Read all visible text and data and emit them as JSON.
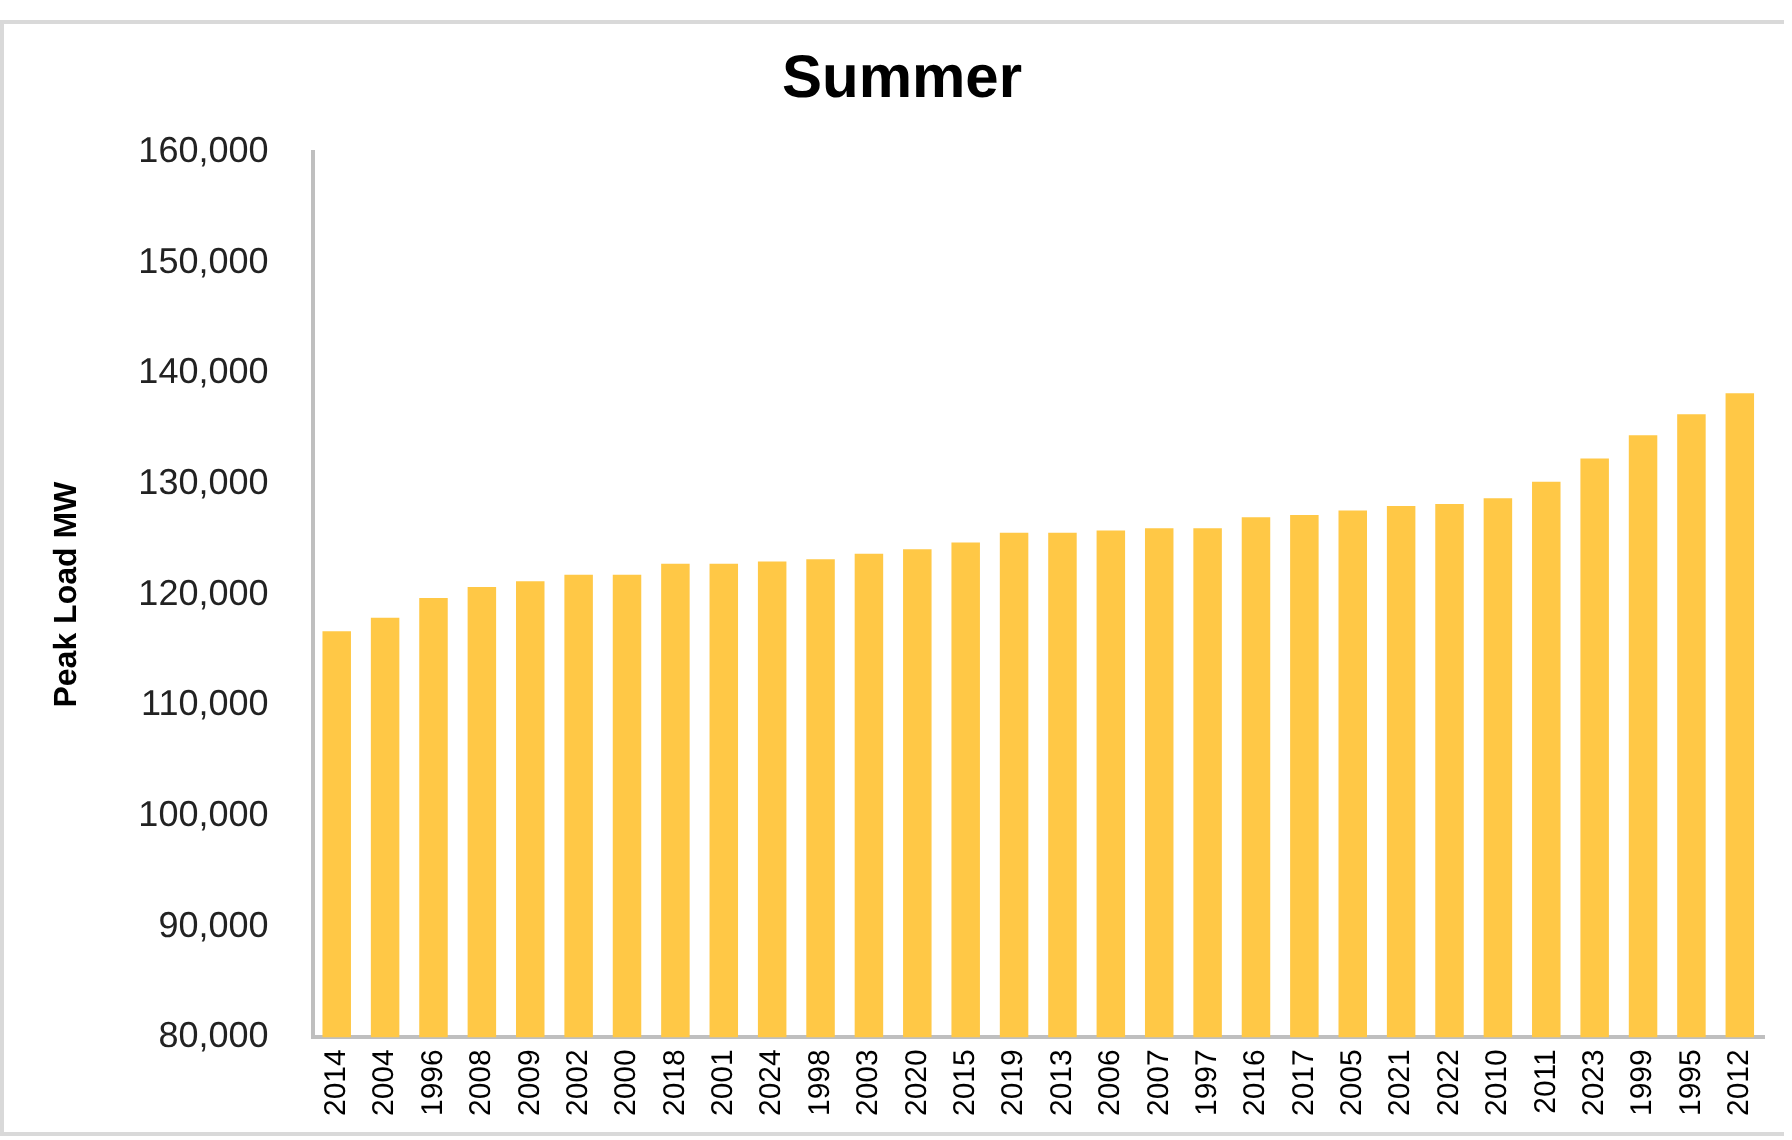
{
  "chart_data": {
    "type": "bar",
    "title": "Summer",
    "ylabel": "Peak Load MW",
    "categories": [
      "2014",
      "2004",
      "1996",
      "2008",
      "2009",
      "2002",
      "2000",
      "2018",
      "2001",
      "2024",
      "1998",
      "2003",
      "2020",
      "2015",
      "2019",
      "2013",
      "2006",
      "2007",
      "1997",
      "2016",
      "2017",
      "2005",
      "2021",
      "2022",
      "2010",
      "2011",
      "2023",
      "1999",
      "1995",
      "2012"
    ],
    "values": [
      116700,
      117900,
      119700,
      120700,
      121200,
      121800,
      121800,
      122800,
      122800,
      123000,
      123200,
      123700,
      124100,
      124700,
      125600,
      125600,
      125800,
      126000,
      126000,
      127000,
      127200,
      127600,
      128000,
      128200,
      128700,
      130200,
      132300,
      134400,
      136300,
      138200
    ],
    "color": "#ffc846",
    "ylim": [
      80000,
      160000
    ],
    "yticks": [
      {
        "value": 80000,
        "label": "80,000"
      },
      {
        "value": 90000,
        "label": "90,000"
      },
      {
        "value": 100000,
        "label": "100,000"
      },
      {
        "value": 110000,
        "label": "110,000"
      },
      {
        "value": 120000,
        "label": "120,000"
      },
      {
        "value": 130000,
        "label": "130,000"
      },
      {
        "value": 140000,
        "label": "140,000"
      },
      {
        "value": 150000,
        "label": "150,000"
      },
      {
        "value": 160000,
        "label": "160,000"
      }
    ],
    "grid": false,
    "legend": false
  }
}
